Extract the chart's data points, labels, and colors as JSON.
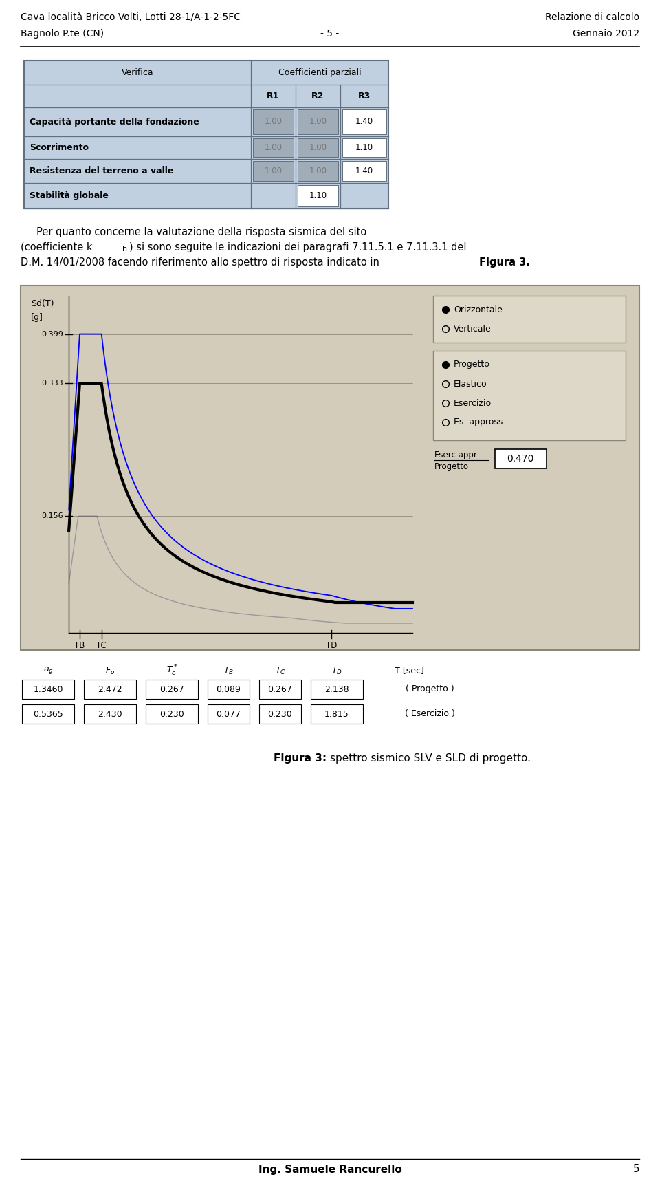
{
  "header_left1": "Cava località Bricco Volti, Lotti 28-1/A-1-2-5FC",
  "header_right1": "Relazione di calcolo",
  "header_left2": "Bagnolo P.te (CN)",
  "header_center2": "- 5 -",
  "header_right2": "Gennaio 2012",
  "table_rows": [
    {
      "label": "Capacità portante della fondazione",
      "R1": "1.00",
      "R2": "1.00",
      "R3": "1.40",
      "gray12": true
    },
    {
      "label": "Scorrimento",
      "R1": "1.00",
      "R2": "1.00",
      "R3": "1.10",
      "gray12": true
    },
    {
      "label": "Resistenza del terreno a valle",
      "R1": "1.00",
      "R2": "1.00",
      "R3": "1.40",
      "gray12": true
    },
    {
      "label": "Stabilità globale",
      "R1": "",
      "R2": "1.10",
      "R3": "",
      "gray12": false
    }
  ],
  "chart_bg": "#d4ccba",
  "progetto_params": {
    "ag": 1.346,
    "Fo": 2.472,
    "Tc_star": 0.267,
    "TB": 0.089,
    "TC": 0.267,
    "TD": 2.138
  },
  "esercizio_params": {
    "ag": 0.5365,
    "Fo": 2.43,
    "Tc_star": 0.23,
    "TB": 0.077,
    "TC": 0.23,
    "TD": 1.815
  },
  "param_table_row1": [
    "1.3460",
    "2.472",
    "0.267",
    "0.089",
    "0.267",
    "2.138"
  ],
  "param_table_row2": [
    "0.5365",
    "2.430",
    "0.230",
    "0.077",
    "0.230",
    "1.815"
  ],
  "footer_text": "Ing. Samuele Rancurello",
  "footer_page": "5",
  "table_bg": "#c0d0e0",
  "cell_gray": "#a0acb8",
  "cell_white": "#ffffff"
}
